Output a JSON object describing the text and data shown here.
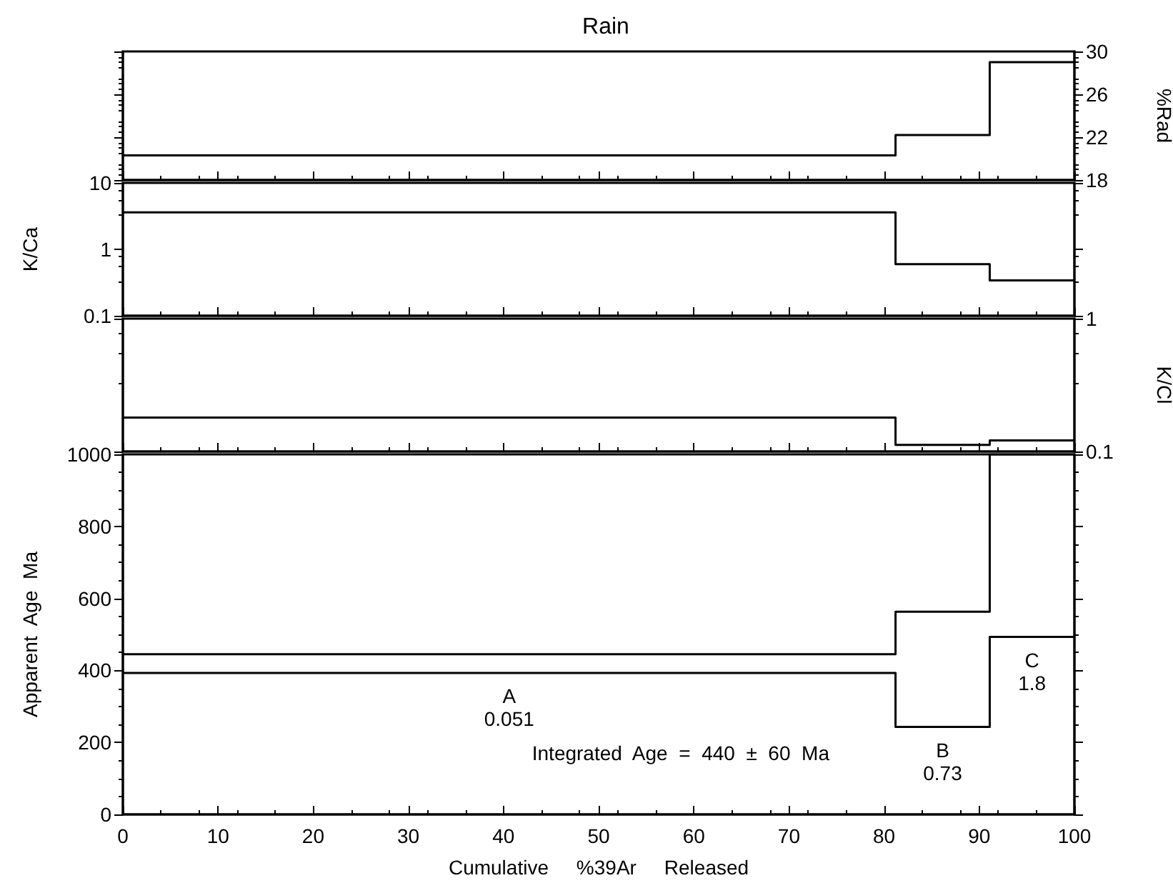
{
  "chart_data": [
    {
      "type": "step",
      "title": "Rain",
      "ylabel": "%Rad",
      "xlim": [
        0,
        100
      ],
      "xticks": [
        {
          "value": 0,
          "label": null
        },
        {
          "value": 10,
          "label": null
        },
        {
          "value": 20,
          "label": null
        },
        {
          "value": 30,
          "label": null
        },
        {
          "value": 40,
          "label": null
        },
        {
          "value": 50,
          "label": null
        },
        {
          "value": 60,
          "label": null
        },
        {
          "value": 70,
          "label": null
        },
        {
          "value": 80,
          "label": null
        },
        {
          "value": 90,
          "label": null
        },
        {
          "value": 100,
          "label": null
        }
      ],
      "ylim": [
        18,
        30
      ],
      "yticks": [
        18,
        22,
        26,
        30
      ],
      "tick_labels": "y",
      "grid": false,
      "marker": "none",
      "line_style": "solid",
      "x": [
        0,
        81.2,
        91.1,
        100
      ],
      "series": [
        {
          "color": "#000000",
          "values": [
            20.3,
            22.2,
            29.0,
            29.0
          ]
        }
      ]
    },
    {
      "type": "step",
      "ylabel": "K/Ca",
      "xlim": [
        0,
        100
      ],
      "xticks": [
        {
          "value": 0,
          "label": null
        },
        {
          "value": 10,
          "label": null
        },
        {
          "value": 20,
          "label": null
        },
        {
          "value": 30,
          "label": null
        },
        {
          "value": 40,
          "label": null
        },
        {
          "value": 50,
          "label": null
        },
        {
          "value": 60,
          "label": null
        },
        {
          "value": 70,
          "label": null
        },
        {
          "value": 80,
          "label": null
        },
        {
          "value": 90,
          "label": null
        },
        {
          "value": 100,
          "label": null
        }
      ],
      "ylim": [
        0.1,
        10
      ],
      "yticks": [
        0.1,
        1,
        10
      ],
      "log": "y",
      "tick_labels": "y",
      "grid": false,
      "marker": "none",
      "line_style": "solid",
      "x": [
        0,
        81.2,
        91.1,
        100
      ],
      "series": [
        {
          "color": "#000000",
          "values": [
            3.6,
            0.6,
            0.34,
            0.34
          ]
        }
      ]
    },
    {
      "type": "step",
      "ylabel": "K/Cl",
      "xlim": [
        0,
        100
      ],
      "xticks": [
        {
          "value": 0,
          "label": null
        },
        {
          "value": 10,
          "label": null
        },
        {
          "value": 20,
          "label": null
        },
        {
          "value": 30,
          "label": null
        },
        {
          "value": 40,
          "label": null
        },
        {
          "value": 50,
          "label": null
        },
        {
          "value": 60,
          "label": null
        },
        {
          "value": 70,
          "label": null
        },
        {
          "value": 80,
          "label": null
        },
        {
          "value": 90,
          "label": null
        },
        {
          "value": 100,
          "label": null
        }
      ],
      "ylim": [
        0.1,
        1
      ],
      "yticks": [
        0.1,
        1
      ],
      "log": "y",
      "tick_labels": "y",
      "grid": false,
      "marker": "none",
      "line_style": "solid",
      "x": [
        0,
        81.2,
        91.1,
        100
      ],
      "series": [
        {
          "color": "#000000",
          "values": [
            0.18,
            0.112,
            0.121,
            0.121
          ]
        }
      ]
    },
    {
      "type": "step",
      "xlabel": "Cumulative     %39Ar     Released",
      "ylabel": "Apparent  Age  Ma",
      "xlim": [
        0,
        100
      ],
      "xticks": [
        0,
        10,
        20,
        30,
        40,
        50,
        60,
        70,
        80,
        90,
        100
      ],
      "ylim": [
        0,
        1000
      ],
      "yticks": [
        0,
        200,
        400,
        600,
        800,
        1000
      ],
      "grid": false,
      "marker": "none",
      "line_style": "solid",
      "x": [
        0,
        81.2,
        91.1,
        100
      ],
      "series": [
        {
          "color": "#000000",
          "values": [
            445,
            563,
            1000,
            1000
          ]
        },
        {
          "color": "#000000",
          "values": [
            393,
            243,
            493,
            493
          ]
        }
      ],
      "annotations": [
        "A\n0.051",
        "B\n0.73",
        "C\n1.8",
        "Integrated  Age  =  440  ±  60  Ma"
      ]
    }
  ]
}
